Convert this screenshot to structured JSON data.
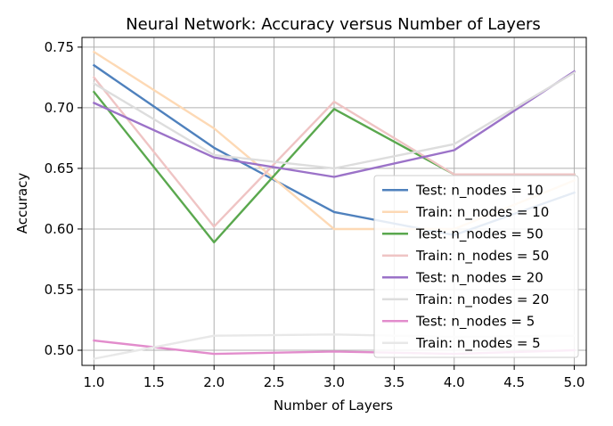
{
  "chart_data": {
    "type": "line",
    "title": "Neural Network: Accuracy versus Number of Layers",
    "xlabel": "Number of Layers",
    "ylabel": "Accuracy",
    "xlim": [
      0.9,
      5.1
    ],
    "ylim": [
      0.4875,
      0.758
    ],
    "x_ticks": [
      "1.0",
      "1.5",
      "2.0",
      "2.5",
      "3.0",
      "3.5",
      "4.0",
      "4.5",
      "5.0"
    ],
    "y_ticks": [
      "0.50",
      "0.55",
      "0.60",
      "0.65",
      "0.70",
      "0.75"
    ],
    "grid": true,
    "legend_position": "lower-right",
    "x": [
      1,
      2,
      3,
      4,
      5
    ],
    "series": [
      {
        "name": "Test: n_nodes = 10",
        "color": "#4f81bd",
        "opacity": 1.0,
        "values": [
          0.735,
          0.667,
          0.614,
          0.595,
          0.63
        ]
      },
      {
        "name": "Train: n_nodes = 10",
        "color": "#fdd9b5",
        "opacity": 1.0,
        "values": [
          0.746,
          0.683,
          0.6,
          0.6,
          0.64
        ]
      },
      {
        "name": "Test: n_nodes = 50",
        "color": "#5aa84e",
        "opacity": 1.0,
        "values": [
          0.713,
          0.589,
          0.699,
          0.645,
          0.645
        ]
      },
      {
        "name": "Train: n_nodes = 50",
        "color": "#efc4c4",
        "opacity": 1.0,
        "values": [
          0.725,
          0.602,
          0.705,
          0.645,
          0.645
        ]
      },
      {
        "name": "Test: n_nodes = 20",
        "color": "#9b72c8",
        "opacity": 1.0,
        "values": [
          0.704,
          0.659,
          0.643,
          0.665,
          0.73
        ]
      },
      {
        "name": "Train: n_nodes = 20",
        "color": "#dddddd",
        "opacity": 1.0,
        "values": [
          0.72,
          0.661,
          0.65,
          0.67,
          0.729
        ]
      },
      {
        "name": "Test: n_nodes = 5",
        "color": "#e28ccc",
        "opacity": 1.0,
        "values": [
          0.508,
          0.497,
          0.499,
          0.497,
          0.5
        ]
      },
      {
        "name": "Train: n_nodes = 5",
        "color": "#e8e8e8",
        "opacity": 1.0,
        "values": [
          0.493,
          0.512,
          0.513,
          0.511,
          0.512
        ]
      }
    ]
  }
}
